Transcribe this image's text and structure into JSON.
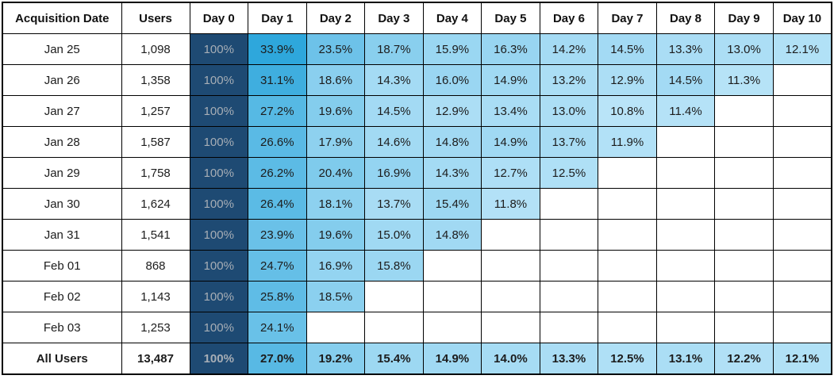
{
  "chart_data": {
    "type": "heatmap",
    "value_unit": "percent",
    "columns": [
      "Acquisition Date",
      "Users",
      "Day 0",
      "Day 1",
      "Day 2",
      "Day 3",
      "Day 4",
      "Day 5",
      "Day 6",
      "Day 7",
      "Day 8",
      "Day 9",
      "Day 10"
    ],
    "cohorts": [
      {
        "label": "Jan 25",
        "users": "1,098",
        "retention": [
          100,
          33.9,
          23.5,
          18.7,
          15.9,
          16.3,
          14.2,
          14.5,
          13.3,
          13.0,
          12.1
        ]
      },
      {
        "label": "Jan 26",
        "users": "1,358",
        "retention": [
          100,
          31.1,
          18.6,
          14.3,
          16.0,
          14.9,
          13.2,
          12.9,
          14.5,
          11.3
        ]
      },
      {
        "label": "Jan 27",
        "users": "1,257",
        "retention": [
          100,
          27.2,
          19.6,
          14.5,
          12.9,
          13.4,
          13.0,
          10.8,
          11.4
        ]
      },
      {
        "label": "Jan 28",
        "users": "1,587",
        "retention": [
          100,
          26.6,
          17.9,
          14.6,
          14.8,
          14.9,
          13.7,
          11.9
        ]
      },
      {
        "label": "Jan 29",
        "users": "1,758",
        "retention": [
          100,
          26.2,
          20.4,
          16.9,
          14.3,
          12.7,
          12.5
        ]
      },
      {
        "label": "Jan 30",
        "users": "1,624",
        "retention": [
          100,
          26.4,
          18.1,
          13.7,
          15.4,
          11.8
        ]
      },
      {
        "label": "Jan 31",
        "users": "1,541",
        "retention": [
          100,
          23.9,
          19.6,
          15.0,
          14.8
        ]
      },
      {
        "label": "Feb 01",
        "users": "868",
        "retention": [
          100,
          24.7,
          16.9,
          15.8
        ]
      },
      {
        "label": "Feb 02",
        "users": "1,143",
        "retention": [
          100,
          25.8,
          18.5
        ]
      },
      {
        "label": "Feb 03",
        "users": "1,253",
        "retention": [
          100,
          24.1
        ]
      },
      {
        "label": "All Users",
        "users": "13,487",
        "is_total": true,
        "retention": [
          100,
          27.0,
          19.2,
          15.4,
          14.9,
          14.0,
          13.3,
          12.5,
          13.1,
          12.2,
          12.1
        ]
      }
    ],
    "color_scale": {
      "day0_color": "#1E4A73",
      "day0_text_color": "#A7AEB6",
      "min_value": 10.8,
      "min_color": "#B9E4F8",
      "max_value": 33.9,
      "max_color": "#2EA7DC"
    },
    "layout": {
      "grid_color": "#000000",
      "text_color": "#1C1C1C",
      "header_bg": "#FFFFFF",
      "legend": "none",
      "grid": "on"
    }
  }
}
